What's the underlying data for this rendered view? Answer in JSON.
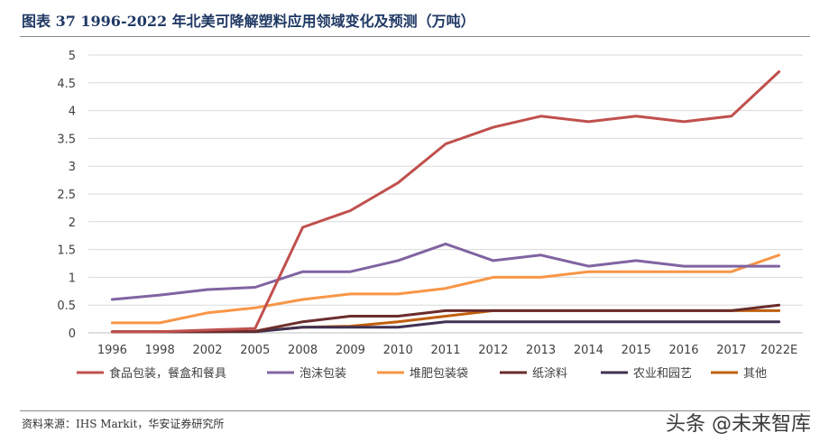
{
  "header": {
    "title": "图表 37 1996-2022 年北美可降解塑料应用领域变化及预测（万吨）"
  },
  "footer": {
    "source": "资料来源：IHS Markit，华安证券研究所",
    "watermark": "头条 @未来智库"
  },
  "chart_data": {
    "type": "line",
    "title": "图表 37 1996-2022 年北美可降解塑料应用领域变化及预测（万吨）",
    "xlabel": "",
    "ylabel": "",
    "ylim": [
      0,
      5
    ],
    "yticks": [
      "0",
      "0.5",
      "1",
      "1.5",
      "2",
      "2.5",
      "3",
      "3.5",
      "4",
      "4.5",
      "5"
    ],
    "grid": true,
    "legend_position": "bottom",
    "categories": [
      "1996",
      "1998",
      "2002",
      "2005",
      "2008",
      "2009",
      "2010",
      "2011",
      "2012",
      "2013",
      "2014",
      "2015",
      "2016",
      "2017",
      "2022E"
    ],
    "series": [
      {
        "name": "食品包装，餐盒和餐具",
        "color": "#c0504d",
        "values": [
          0.02,
          0.02,
          0.05,
          0.08,
          1.9,
          2.2,
          2.7,
          3.4,
          3.7,
          3.9,
          3.8,
          3.9,
          3.8,
          3.9,
          4.7
        ]
      },
      {
        "name": "泡沫包装",
        "color": "#8064a2",
        "values": [
          0.6,
          0.68,
          0.78,
          0.82,
          1.1,
          1.1,
          1.3,
          1.6,
          1.3,
          1.4,
          1.2,
          1.3,
          1.2,
          1.2,
          1.2
        ]
      },
      {
        "name": "堆肥包装袋",
        "color": "#f79646",
        "values": [
          0.18,
          0.18,
          0.36,
          0.45,
          0.6,
          0.7,
          0.7,
          0.8,
          1.0,
          1.0,
          1.1,
          1.1,
          1.1,
          1.1,
          1.4
        ]
      },
      {
        "name": "纸涂料",
        "color": "#6b2c2c",
        "values": [
          0.02,
          0.02,
          0.02,
          0.03,
          0.2,
          0.3,
          0.3,
          0.4,
          0.4,
          0.4,
          0.4,
          0.4,
          0.4,
          0.4,
          0.5
        ]
      },
      {
        "name": "农业和园艺",
        "color": "#403152",
        "values": [
          0.02,
          0.02,
          0.02,
          0.02,
          0.1,
          0.1,
          0.1,
          0.2,
          0.2,
          0.2,
          0.2,
          0.2,
          0.2,
          0.2,
          0.2
        ]
      },
      {
        "name": "其他",
        "color": "#c0600e",
        "values": [
          0.02,
          0.02,
          0.02,
          0.03,
          0.1,
          0.12,
          0.2,
          0.3,
          0.4,
          0.4,
          0.4,
          0.4,
          0.4,
          0.4,
          0.4
        ]
      }
    ]
  }
}
